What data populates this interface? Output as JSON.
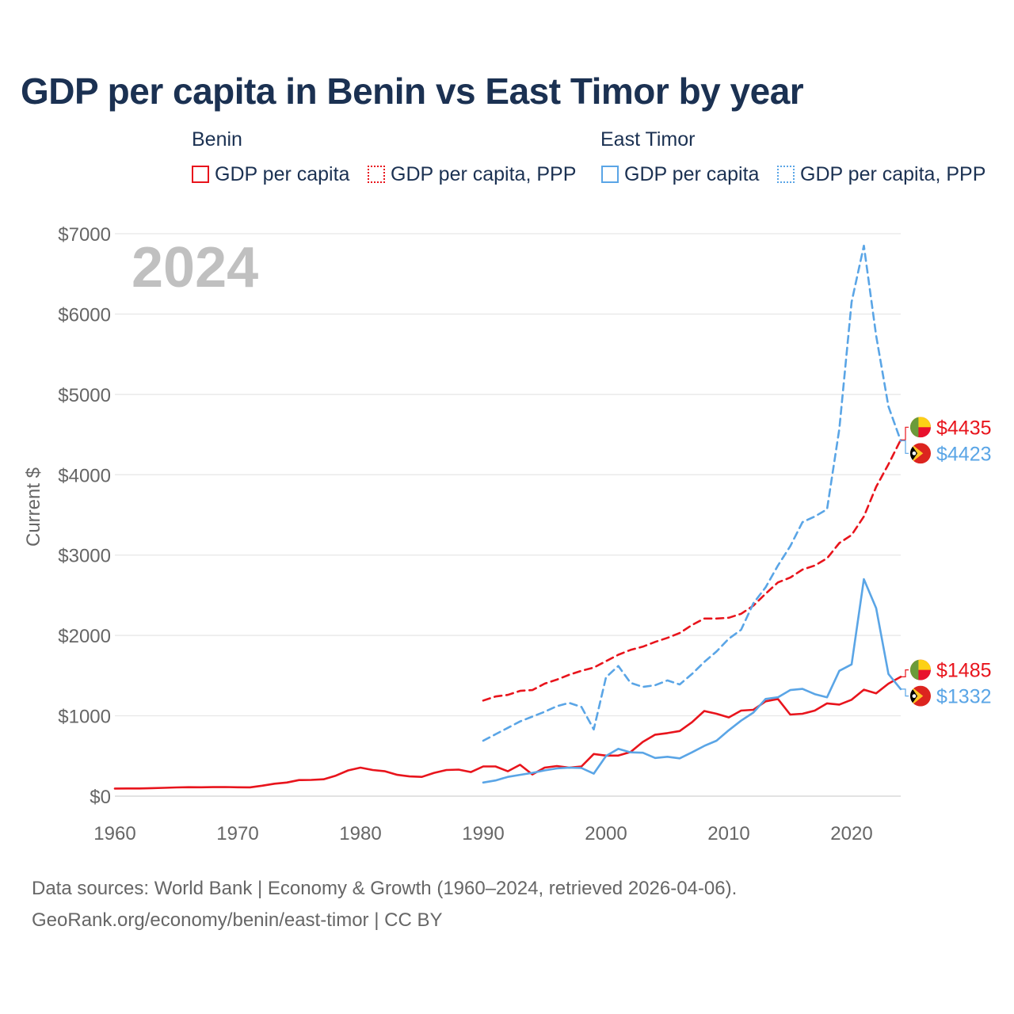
{
  "title": "GDP per capita in Benin vs East Timor by year",
  "legend": {
    "groups": [
      {
        "name": "Benin",
        "color": "#e8141c",
        "items": [
          {
            "label": "GDP per capita",
            "style": "solid"
          },
          {
            "label": "GDP per capita, PPP",
            "style": "dotted"
          }
        ]
      },
      {
        "name": "East Timor",
        "color": "#5aa5e6",
        "items": [
          {
            "label": "GDP per capita",
            "style": "solid"
          },
          {
            "label": "GDP per capita, PPP",
            "style": "dotted"
          }
        ]
      }
    ]
  },
  "year_watermark": "2024",
  "footer": {
    "line1": "Data sources: World Bank | Economy & Growth (1960–2024, retrieved 2026-04-06).",
    "line2": "GeoRank.org/economy/benin/east-timor | CC BY"
  },
  "chart_data": {
    "type": "line",
    "title": "GDP per capita in Benin vs East Timor by year",
    "xlabel": "",
    "ylabel": "Current $",
    "xlim": [
      1960,
      2024
    ],
    "ylim": [
      0,
      7000
    ],
    "x_ticks": [
      1960,
      1970,
      1980,
      1990,
      2000,
      2010,
      2020
    ],
    "x_tick_labels": [
      "1960",
      "1970",
      "1980",
      "1990",
      "2000",
      "2010",
      "2020"
    ],
    "y_ticks": [
      0,
      1000,
      2000,
      3000,
      4000,
      5000,
      6000,
      7000
    ],
    "y_tick_labels": [
      "$0",
      "$1000",
      "$2000",
      "$3000",
      "$4000",
      "$5000",
      "$6000",
      "$7000"
    ],
    "grid": true,
    "series": [
      {
        "name": "Benin GDP per capita",
        "country": "Benin",
        "color": "#e8141c",
        "dash": "solid",
        "x": [
          1960,
          1961,
          1962,
          1963,
          1964,
          1965,
          1966,
          1967,
          1968,
          1969,
          1970,
          1971,
          1972,
          1973,
          1974,
          1975,
          1976,
          1977,
          1978,
          1979,
          1980,
          1981,
          1982,
          1983,
          1984,
          1985,
          1986,
          1987,
          1988,
          1989,
          1990,
          1991,
          1992,
          1993,
          1994,
          1995,
          1996,
          1997,
          1998,
          1999,
          2000,
          2001,
          2002,
          2003,
          2004,
          2005,
          2006,
          2007,
          2008,
          2009,
          2010,
          2011,
          2012,
          2013,
          2014,
          2015,
          2016,
          2017,
          2018,
          2019,
          2020,
          2021,
          2022,
          2023,
          2024
        ],
        "values": [
          95,
          96,
          96,
          100,
          104,
          108,
          111,
          110,
          112,
          113,
          110,
          109,
          130,
          155,
          170,
          200,
          202,
          210,
          255,
          320,
          355,
          325,
          310,
          265,
          245,
          240,
          290,
          325,
          330,
          300,
          370,
          370,
          310,
          390,
          270,
          355,
          375,
          355,
          370,
          525,
          505,
          505,
          550,
          675,
          765,
          785,
          810,
          920,
          1060,
          1025,
          980,
          1065,
          1075,
          1180,
          1210,
          1015,
          1025,
          1065,
          1155,
          1140,
          1200,
          1325,
          1280,
          1400,
          1485
        ],
        "end_label": "$1485"
      },
      {
        "name": "Benin GDP per capita, PPP",
        "country": "Benin",
        "color": "#e8141c",
        "dash": "dashed",
        "x": [
          1990,
          1991,
          1992,
          1993,
          1994,
          1995,
          1996,
          1997,
          1998,
          1999,
          2000,
          2001,
          2002,
          2003,
          2004,
          2005,
          2006,
          2007,
          2008,
          2009,
          2010,
          2011,
          2012,
          2013,
          2014,
          2015,
          2016,
          2017,
          2018,
          2019,
          2020,
          2021,
          2022,
          2023,
          2024
        ],
        "values": [
          1190,
          1240,
          1260,
          1310,
          1320,
          1400,
          1450,
          1510,
          1560,
          1600,
          1680,
          1760,
          1820,
          1860,
          1920,
          1970,
          2030,
          2130,
          2210,
          2210,
          2220,
          2270,
          2370,
          2520,
          2660,
          2720,
          2820,
          2870,
          2960,
          3150,
          3250,
          3480,
          3850,
          4130,
          4435
        ],
        "end_label": "$4435"
      },
      {
        "name": "East Timor GDP per capita",
        "country": "East Timor",
        "color": "#5aa5e6",
        "dash": "solid",
        "x": [
          1990,
          1991,
          1992,
          1993,
          1994,
          1995,
          1996,
          1997,
          1998,
          1999,
          2000,
          2001,
          2002,
          2003,
          2004,
          2005,
          2006,
          2007,
          2008,
          2009,
          2010,
          2011,
          2012,
          2013,
          2014,
          2015,
          2016,
          2017,
          2018,
          2019,
          2020,
          2021,
          2022,
          2023,
          2024
        ],
        "values": [
          170,
          195,
          240,
          265,
          290,
          320,
          345,
          355,
          350,
          280,
          500,
          590,
          545,
          540,
          475,
          490,
          470,
          545,
          625,
          690,
          820,
          940,
          1040,
          1210,
          1230,
          1320,
          1335,
          1270,
          1230,
          1560,
          1640,
          2700,
          2340,
          1520,
          1332
        ],
        "end_label": "$1332"
      },
      {
        "name": "East Timor GDP per capita, PPP",
        "country": "East Timor",
        "color": "#5aa5e6",
        "dash": "dashed",
        "x": [
          1990,
          1991,
          1992,
          1993,
          1994,
          1995,
          1996,
          1997,
          1998,
          1999,
          2000,
          2001,
          2002,
          2003,
          2004,
          2005,
          2006,
          2007,
          2008,
          2009,
          2010,
          2011,
          2012,
          2013,
          2014,
          2015,
          2016,
          2017,
          2018,
          2019,
          2020,
          2021,
          2022,
          2023,
          2024
        ],
        "values": [
          690,
          770,
          850,
          930,
          990,
          1050,
          1120,
          1160,
          1110,
          830,
          1480,
          1620,
          1410,
          1360,
          1380,
          1440,
          1390,
          1520,
          1670,
          1800,
          1960,
          2070,
          2400,
          2600,
          2870,
          3110,
          3410,
          3480,
          3570,
          4570,
          6150,
          6850,
          5730,
          4850,
          4423
        ],
        "end_label": "$4423"
      }
    ]
  },
  "colors": {
    "benin": "#e8141c",
    "east_timor": "#5aa5e6",
    "title": "#1b3152",
    "axis_text": "#666666",
    "watermark": "#c0c0c0",
    "grid": "#e6e6e6"
  }
}
